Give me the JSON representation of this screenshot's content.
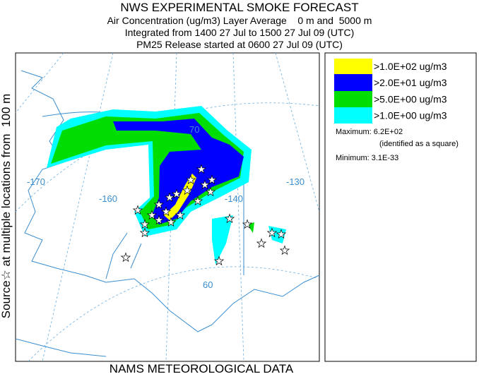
{
  "header": {
    "title": "NWS EXPERIMENTAL SMOKE FORECAST",
    "lines": [
      "Air Concentration (ug/m3) Layer Average    0 m and  5000 m",
      "Integrated from 1400 27 Jul to 1500 27 Jul 09 (UTC)",
      "PM25 Release started at 0600 27 Jul 09 (UTC)"
    ]
  },
  "side_label": "Source☆ at multiple locations from  100 m",
  "footer": "NAMS METEOROLOGICAL DATA",
  "legend": {
    "items": [
      {
        "label": ">1.0E+02 ug/m3",
        "color": "#ffff00"
      },
      {
        "label": ">2.0E+01 ug/m3",
        "color": "#0000ff"
      },
      {
        "label": ">5.0E+00 ug/m3",
        "color": "#00dd00"
      },
      {
        "label": ">1.0E+00 ug/m3",
        "color": "#00ffff"
      }
    ],
    "maximum": "Maximum: 6.2E+02",
    "maximum_note": "(identified as a square)",
    "minimum": "Minimum: 3.1E-33"
  },
  "map": {
    "labels": [
      "-170",
      "-160",
      "-140",
      "-130",
      "70",
      "60"
    ]
  }
}
